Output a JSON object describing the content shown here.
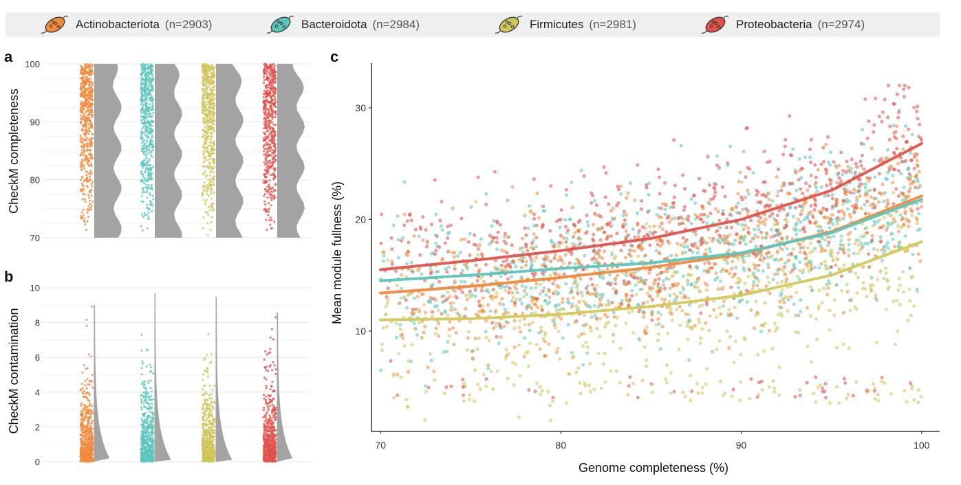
{
  "legend": [
    {
      "name": "Actinobacteriota",
      "n": "(n=2903)",
      "color": "#f08a3c"
    },
    {
      "name": "Bacteroidota",
      "n": "(n=2984)",
      "color": "#5cc6bd"
    },
    {
      "name": "Firmicutes",
      "n": "(n=2981)",
      "color": "#cfc45a"
    },
    {
      "name": "Proteobacteria",
      "n": "(n=2974)",
      "color": "#e0524b"
    }
  ],
  "panels": {
    "a": "a",
    "b": "b",
    "c": "c"
  },
  "chart_data": [
    {
      "panel": "a",
      "type": "scatter",
      "ylabel": "CheckM completeness",
      "yticks": [
        70,
        80,
        90,
        100
      ],
      "ylim": [
        70,
        100
      ],
      "grid": true,
      "series": [
        "Actinobacteriota",
        "Bacteroidota",
        "Firmicutes",
        "Proteobacteria"
      ],
      "description_values": {
        "min": 70,
        "max": 100
      }
    },
    {
      "panel": "b",
      "type": "scatter",
      "ylabel": "CheckM contamination",
      "yticks": [
        0,
        2,
        4,
        6,
        8,
        10
      ],
      "ylim": [
        0,
        10
      ],
      "grid": true,
      "max_values": [
        9.0,
        9.7,
        9.5,
        8.6
      ]
    },
    {
      "panel": "c",
      "type": "scatter",
      "xlabel": "Genome completeness (%)",
      "ylabel": "Mean module fullness (%)",
      "xticks": [
        70,
        80,
        90,
        100
      ],
      "yticks": [
        10,
        20,
        30
      ],
      "xlim": [
        69.5,
        101
      ],
      "ylim": [
        1,
        34
      ],
      "grid": false,
      "trend_lines": [
        {
          "name": "Proteobacteria",
          "x": [
            70,
            75,
            80,
            85,
            90,
            95,
            100
          ],
          "y": [
            15.5,
            16.3,
            17.2,
            18.3,
            20.0,
            22.6,
            26.8
          ]
        },
        {
          "name": "Bacteroidota",
          "x": [
            70,
            75,
            80,
            85,
            90,
            95,
            100
          ],
          "y": [
            14.5,
            15.0,
            15.6,
            16.1,
            17.0,
            18.8,
            21.8
          ]
        },
        {
          "name": "Actinobacteriota",
          "x": [
            70,
            75,
            80,
            85,
            90,
            95,
            100
          ],
          "y": [
            13.4,
            14.0,
            14.8,
            15.7,
            16.9,
            18.9,
            22.1
          ]
        },
        {
          "name": "Firmicutes",
          "x": [
            70,
            75,
            80,
            85,
            90,
            95,
            100
          ],
          "y": [
            11.0,
            11.1,
            11.5,
            12.2,
            13.2,
            15.0,
            18.0
          ]
        }
      ]
    }
  ]
}
